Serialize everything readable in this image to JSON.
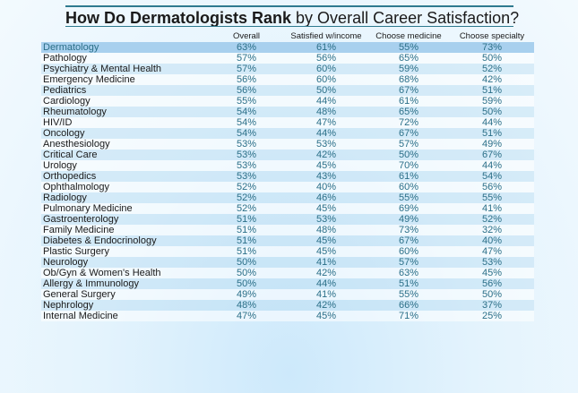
{
  "title": {
    "bold": "How Do Dermatologists Rank",
    "rest": " by Overall Career Satisfaction?"
  },
  "headers": [
    "",
    "Overall",
    "Satisfied w/income",
    "Choose medicine",
    "Choose specialty"
  ],
  "rows": [
    {
      "name": "Dermatology",
      "values": [
        "63%",
        "61%",
        "55%",
        "73%"
      ],
      "highlight": true
    },
    {
      "name": "Pathology",
      "values": [
        "57%",
        "56%",
        "65%",
        "50%"
      ]
    },
    {
      "name": "Psychiatry & Mental Health",
      "values": [
        "57%",
        "60%",
        "59%",
        "52%"
      ]
    },
    {
      "name": "Emergency Medicine",
      "values": [
        "56%",
        "60%",
        "68%",
        "42%"
      ]
    },
    {
      "name": "Pediatrics",
      "values": [
        "56%",
        "50%",
        "67%",
        "51%"
      ]
    },
    {
      "name": "Cardiology",
      "values": [
        "55%",
        "44%",
        "61%",
        "59%"
      ]
    },
    {
      "name": "Rheumatology",
      "values": [
        "54%",
        "48%",
        "65%",
        "50%"
      ]
    },
    {
      "name": "HIV/ID",
      "values": [
        "54%",
        "47%",
        "72%",
        "44%"
      ]
    },
    {
      "name": "Oncology",
      "values": [
        "54%",
        "44%",
        "67%",
        "51%"
      ]
    },
    {
      "name": "Anesthesiology",
      "values": [
        "53%",
        "53%",
        "57%",
        "49%"
      ]
    },
    {
      "name": "Critical Care",
      "values": [
        "53%",
        "42%",
        "50%",
        "67%"
      ]
    },
    {
      "name": "Urology",
      "values": [
        "53%",
        "45%",
        "70%",
        "44%"
      ]
    },
    {
      "name": "Orthopedics",
      "values": [
        "53%",
        "43%",
        "61%",
        "54%"
      ]
    },
    {
      "name": "Ophthalmology",
      "values": [
        "52%",
        "40%",
        "60%",
        "56%"
      ]
    },
    {
      "name": "Radiology",
      "values": [
        "52%",
        "46%",
        "55%",
        "55%"
      ]
    },
    {
      "name": "Pulmonary Medicine",
      "values": [
        "52%",
        "45%",
        "69%",
        "41%"
      ]
    },
    {
      "name": "Gastroenterology",
      "values": [
        "51%",
        "53%",
        "49%",
        "52%"
      ]
    },
    {
      "name": "Family Medicine",
      "values": [
        "51%",
        "48%",
        "73%",
        "32%"
      ]
    },
    {
      "name": "Diabetes & Endocrinology",
      "values": [
        "51%",
        "45%",
        "67%",
        "40%"
      ]
    },
    {
      "name": "Plastic Surgery",
      "values": [
        "51%",
        "45%",
        "60%",
        "47%"
      ]
    },
    {
      "name": "Neurology",
      "values": [
        "50%",
        "41%",
        "57%",
        "53%"
      ]
    },
    {
      "name": "Ob/Gyn & Women's Health",
      "values": [
        "50%",
        "42%",
        "63%",
        "45%"
      ]
    },
    {
      "name": "Allergy & Immunology",
      "values": [
        "50%",
        "44%",
        "51%",
        "56%"
      ]
    },
    {
      "name": "General Surgery",
      "values": [
        "49%",
        "41%",
        "55%",
        "50%"
      ]
    },
    {
      "name": "Nephrology",
      "values": [
        "48%",
        "42%",
        "66%",
        "37%"
      ]
    },
    {
      "name": "Internal Medicine",
      "values": [
        "47%",
        "45%",
        "71%",
        "25%"
      ]
    }
  ],
  "chart_data": {
    "type": "table",
    "title": "How Do Dermatologists Rank by Overall Career Satisfaction?",
    "columns": [
      "Overall",
      "Satisfied w/income",
      "Choose medicine",
      "Choose specialty"
    ],
    "categories": [
      "Dermatology",
      "Pathology",
      "Psychiatry & Mental Health",
      "Emergency Medicine",
      "Pediatrics",
      "Cardiology",
      "Rheumatology",
      "HIV/ID",
      "Oncology",
      "Anesthesiology",
      "Critical Care",
      "Urology",
      "Orthopedics",
      "Ophthalmology",
      "Radiology",
      "Pulmonary Medicine",
      "Gastroenterology",
      "Family Medicine",
      "Diabetes & Endocrinology",
      "Plastic Surgery",
      "Neurology",
      "Ob/Gyn & Women's Health",
      "Allergy & Immunology",
      "General Surgery",
      "Nephrology",
      "Internal Medicine"
    ],
    "series": [
      {
        "name": "Overall",
        "values": [
          63,
          57,
          57,
          56,
          56,
          55,
          54,
          54,
          54,
          53,
          53,
          53,
          53,
          52,
          52,
          52,
          51,
          51,
          51,
          51,
          50,
          50,
          50,
          49,
          48,
          47
        ]
      },
      {
        "name": "Satisfied w/income",
        "values": [
          61,
          56,
          60,
          60,
          50,
          44,
          48,
          47,
          44,
          53,
          42,
          45,
          43,
          40,
          46,
          45,
          53,
          48,
          45,
          45,
          41,
          42,
          44,
          41,
          42,
          45
        ]
      },
      {
        "name": "Choose medicine",
        "values": [
          55,
          65,
          59,
          68,
          67,
          61,
          65,
          72,
          67,
          57,
          50,
          70,
          61,
          60,
          55,
          69,
          49,
          73,
          67,
          60,
          57,
          63,
          51,
          55,
          66,
          71
        ]
      },
      {
        "name": "Choose specialty",
        "values": [
          73,
          50,
          52,
          42,
          51,
          59,
          50,
          44,
          51,
          49,
          67,
          44,
          54,
          56,
          55,
          41,
          52,
          32,
          40,
          47,
          53,
          45,
          56,
          50,
          37,
          25
        ]
      }
    ],
    "highlight": "Dermatology"
  },
  "colors": {
    "value_text": "#2b6f88",
    "highlight_row": "#a8d0ee",
    "title_rule": "#2e7a8f"
  }
}
